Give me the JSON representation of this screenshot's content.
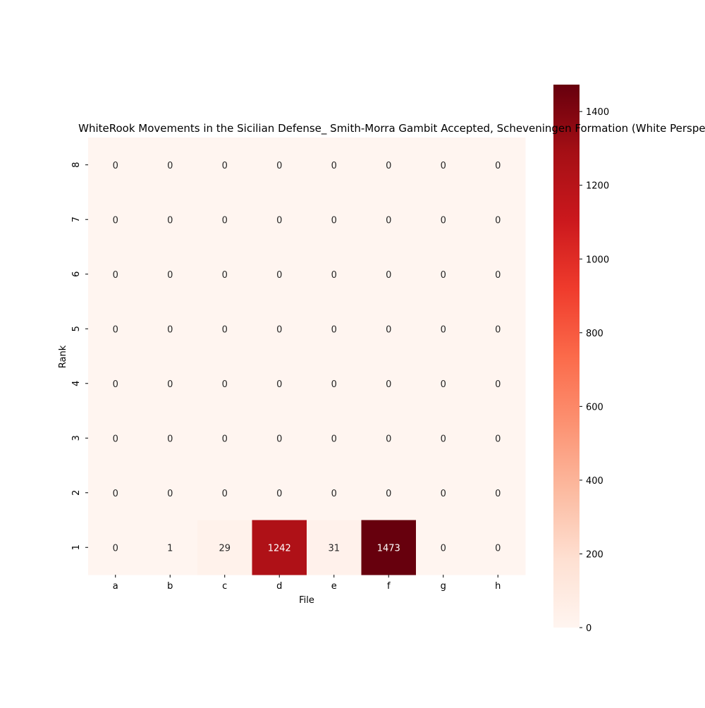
{
  "chart_data": {
    "type": "heatmap",
    "title": "WhiteRook Movements in the Sicilian Defense_ Smith-Morra Gambit Accepted, Scheveningen Formation (White Perspective)",
    "xlabel": "File",
    "ylabel": "Rank",
    "x_categories": [
      "a",
      "b",
      "c",
      "d",
      "e",
      "f",
      "g",
      "h"
    ],
    "y_categories": [
      "8",
      "7",
      "6",
      "5",
      "4",
      "3",
      "2",
      "1"
    ],
    "values": [
      [
        0,
        0,
        0,
        0,
        0,
        0,
        0,
        0
      ],
      [
        0,
        0,
        0,
        0,
        0,
        0,
        0,
        0
      ],
      [
        0,
        0,
        0,
        0,
        0,
        0,
        0,
        0
      ],
      [
        0,
        0,
        0,
        0,
        0,
        0,
        0,
        0
      ],
      [
        0,
        0,
        0,
        0,
        0,
        0,
        0,
        0
      ],
      [
        0,
        0,
        0,
        0,
        0,
        0,
        0,
        0
      ],
      [
        0,
        0,
        0,
        0,
        0,
        0,
        0,
        0
      ],
      [
        0,
        1,
        29,
        1242,
        31,
        1473,
        0,
        0
      ]
    ],
    "colormap": "Reds",
    "color_range": [
      0,
      1473
    ],
    "colorbar_ticks": [
      0,
      200,
      400,
      600,
      800,
      1000,
      1200,
      1400
    ],
    "colorbar_position": "right",
    "annotations": true,
    "grid": false
  }
}
